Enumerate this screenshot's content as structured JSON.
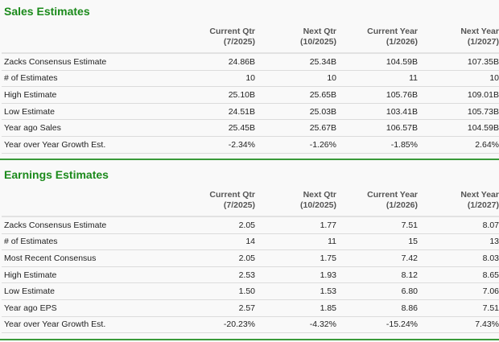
{
  "sales": {
    "title": "Sales Estimates",
    "columns": [
      {
        "name": "Current Qtr",
        "period": "(7/2025)"
      },
      {
        "name": "Next Qtr",
        "period": "(10/2025)"
      },
      {
        "name": "Current Year",
        "period": "(1/2026)"
      },
      {
        "name": "Next Year",
        "period": "(1/2027)"
      }
    ],
    "rows": [
      {
        "label": "Zacks Consensus Estimate",
        "values": [
          "24.86B",
          "25.34B",
          "104.59B",
          "107.35B"
        ]
      },
      {
        "label": "# of Estimates",
        "values": [
          "10",
          "10",
          "11",
          "10"
        ]
      },
      {
        "label": "High Estimate",
        "values": [
          "25.10B",
          "25.65B",
          "105.76B",
          "109.01B"
        ]
      },
      {
        "label": "Low Estimate",
        "values": [
          "24.51B",
          "25.03B",
          "103.41B",
          "105.73B"
        ]
      },
      {
        "label": "Year ago Sales",
        "values": [
          "25.45B",
          "25.67B",
          "106.57B",
          "104.59B"
        ]
      },
      {
        "label": "Year over Year Growth Est.",
        "values": [
          "-2.34%",
          "-1.26%",
          "-1.85%",
          "2.64%"
        ]
      }
    ]
  },
  "earnings": {
    "title": "Earnings Estimates",
    "columns": [
      {
        "name": "Current Qtr",
        "period": "(7/2025)"
      },
      {
        "name": "Next Qtr",
        "period": "(10/2025)"
      },
      {
        "name": "Current Year",
        "period": "(1/2026)"
      },
      {
        "name": "Next Year",
        "period": "(1/2027)"
      }
    ],
    "rows": [
      {
        "label": "Zacks Consensus Estimate",
        "values": [
          "2.05",
          "1.77",
          "7.51",
          "8.07"
        ]
      },
      {
        "label": "# of Estimates",
        "values": [
          "14",
          "11",
          "15",
          "13"
        ]
      },
      {
        "label": "Most Recent Consensus",
        "values": [
          "2.05",
          "1.75",
          "7.42",
          "8.03"
        ]
      },
      {
        "label": "High Estimate",
        "values": [
          "2.53",
          "1.93",
          "8.12",
          "8.65"
        ]
      },
      {
        "label": "Low Estimate",
        "values": [
          "1.50",
          "1.53",
          "6.80",
          "7.06"
        ]
      },
      {
        "label": "Year ago EPS",
        "values": [
          "2.57",
          "1.85",
          "8.86",
          "7.51"
        ]
      },
      {
        "label": "Year over Year Growth Est.",
        "values": [
          "-20.23%",
          "-4.32%",
          "-15.24%",
          "7.43%"
        ]
      }
    ]
  },
  "colors": {
    "title": "#1b8a1b",
    "rule": "#3a9a3a"
  }
}
